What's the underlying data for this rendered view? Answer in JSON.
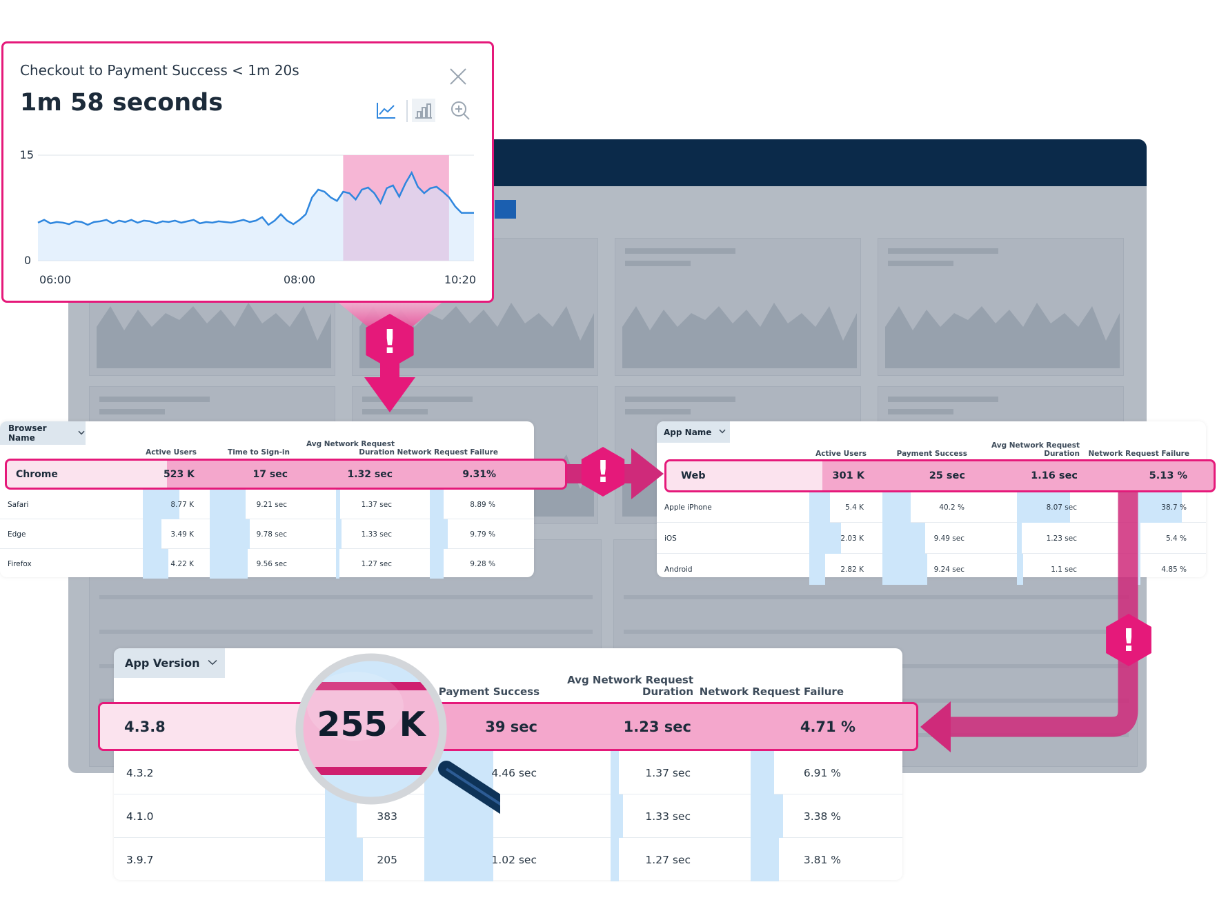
{
  "chart_card": {
    "title": "Checkout to Payment Success < 1m 20s",
    "value": "1m 58 seconds",
    "icons": [
      "line-chart-icon",
      "bar-chart-icon",
      "zoom-in-icon",
      "close-icon"
    ],
    "accent": "#e5197a",
    "line_color": "#2e86de"
  },
  "chart_data": {
    "type": "line",
    "title": "",
    "xlabel": "",
    "ylabel": "",
    "ylim": [
      0,
      15
    ],
    "y_ticks": [
      "15",
      "0"
    ],
    "x_ticks": [
      "06:00",
      "08:00",
      "10:20"
    ],
    "values": [
      5.4,
      5.8,
      5.3,
      5.5,
      5.4,
      5.2,
      5.6,
      5.5,
      5.1,
      5.5,
      5.6,
      5.8,
      5.3,
      5.7,
      5.5,
      5.8,
      5.4,
      5.7,
      5.6,
      5.3,
      5.6,
      5.5,
      5.7,
      5.4,
      5.6,
      5.8,
      5.3,
      5.5,
      5.4,
      5.6,
      5.5,
      5.4,
      5.6,
      5.8,
      5.5,
      5.7,
      6.2,
      5.1,
      5.7,
      6.6,
      5.7,
      5.2,
      5.8,
      6.6,
      9.0,
      10.1,
      9.8,
      9.0,
      8.5,
      9.8,
      9.6,
      8.7,
      10.1,
      10.4,
      9.6,
      8.2,
      10.3,
      10.7,
      9.1,
      11.0,
      12.5,
      10.5,
      9.6,
      10.3,
      10.5,
      9.8,
      9.0,
      7.7,
      6.8,
      6.8,
      6.8
    ]
  },
  "browser_table": {
    "dropdown_label": "Browser Name",
    "headers": [
      "Active Users",
      "Time to Sign-in",
      "Avg Network Request Duration",
      "Network Request Failure"
    ],
    "highlight": {
      "name": "Chrome",
      "values": [
        "523 K",
        "17 sec",
        "1.32 sec",
        "9.31%"
      ]
    },
    "rows": [
      {
        "name": "Safari",
        "values": [
          "8.77 K",
          "9.21 sec",
          "1.37 sec",
          "8.89 %"
        ],
        "bars": [
          0.68,
          0.45,
          0.07,
          0.2
        ]
      },
      {
        "name": "Edge",
        "values": [
          "3.49 K",
          "9.78 sec",
          "1.33 sec",
          "9.79 %"
        ],
        "bars": [
          0.35,
          0.5,
          0.09,
          0.26
        ]
      },
      {
        "name": "Firefox",
        "values": [
          "4.22 K",
          "9.56 sec",
          "1.27 sec",
          "9.28 %"
        ],
        "bars": [
          0.47,
          0.47,
          0.06,
          0.2
        ]
      }
    ]
  },
  "app_table": {
    "dropdown_label": "App Name",
    "headers": [
      "Active Users",
      "Payment Success",
      "Avg Network Request Duration",
      "Network Request Failure"
    ],
    "highlight": {
      "name": "Web",
      "values": [
        "301 K",
        "25 sec",
        "1.16 sec",
        "5.13 %"
      ]
    },
    "rows": [
      {
        "name": "Apple iPhone",
        "values": [
          "5.4 K",
          "40.2 %",
          "8.07 sec",
          "38.7 %"
        ],
        "bars": [
          0.36,
          0.33,
          0.85,
          0.85
        ]
      },
      {
        "name": "iOS",
        "values": [
          "2.03 K",
          "9.49 sec",
          "1.23 sec",
          "5.4 %"
        ],
        "bars": [
          0.55,
          0.5,
          0.08,
          0.05
        ]
      },
      {
        "name": "Android",
        "values": [
          "2.82 K",
          "9.24 sec",
          "1.1 sec",
          "4.85 %"
        ],
        "bars": [
          0.28,
          0.53,
          0.1,
          0.05
        ]
      }
    ]
  },
  "version_table": {
    "dropdown_label": "App Version",
    "headers": [
      "",
      "Payment Success",
      "Avg Network Request Duration",
      "Network Request Failure"
    ],
    "highlight": {
      "name": "4.3.8",
      "values": [
        "255 K",
        "39 sec",
        "1.23 sec",
        "4.71 %"
      ]
    },
    "rows": [
      {
        "name": "4.3.2",
        "values": [
          "",
          "4.46 sec",
          "1.37 sec",
          "6.91 %"
        ],
        "bars": [
          0.3,
          0.6,
          0.1,
          0.25
        ]
      },
      {
        "name": "4.1.0",
        "values": [
          "383",
          "",
          "1.33 sec",
          "3.38 %"
        ],
        "bars": [
          0.42,
          0.6,
          0.15,
          0.35
        ]
      },
      {
        "name": "3.9.7",
        "values": [
          "205",
          "1.02 sec",
          "1.27 sec",
          "3.81 %"
        ],
        "bars": [
          0.5,
          0.6,
          0.1,
          0.3
        ]
      }
    ]
  },
  "alerts": {
    "symbol": "!",
    "color": "#e5197a"
  },
  "colors": {
    "highlight_border": "#e5197a",
    "highlight_fill": "#f4a7cc",
    "highlight_name_fill": "#fbe3ee",
    "bar_fill": "#cde6fa",
    "nav_dark": "#0b2a4a"
  }
}
